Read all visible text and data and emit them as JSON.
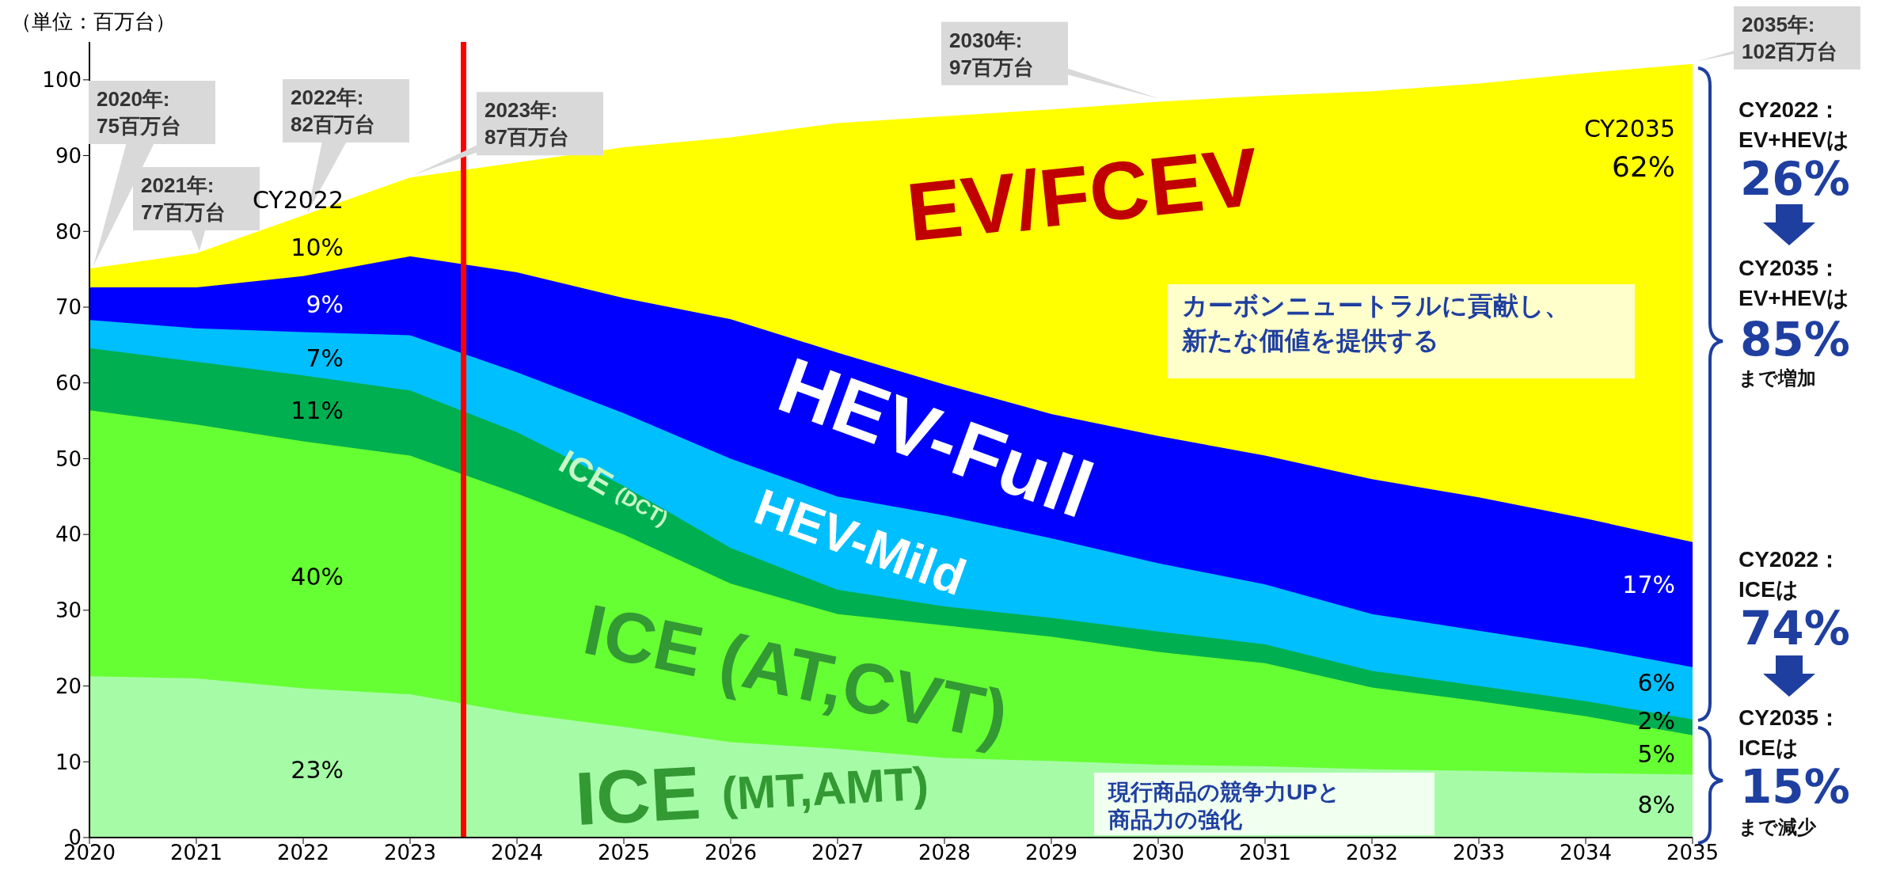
{
  "chart_data": {
    "type": "area",
    "stacked": true,
    "ylabel": "（単位：百万台）",
    "x": [
      2020,
      2021,
      2022,
      2023,
      2024,
      2025,
      2026,
      2027,
      2028,
      2029,
      2030,
      2031,
      2032,
      2033,
      2034,
      2035
    ],
    "xlim": [
      2020,
      2035
    ],
    "xticks": [
      2020,
      2021,
      2022,
      2023,
      2024,
      2025,
      2026,
      2027,
      2028,
      2029,
      2030,
      2031,
      2032,
      2033,
      2034,
      2035
    ],
    "ylim": [
      0,
      105
    ],
    "yticks": [
      0,
      10,
      20,
      30,
      40,
      50,
      60,
      70,
      80,
      90,
      100
    ],
    "series": [
      {
        "name": "ICE (MT,AMT)",
        "color": "#a6fca6",
        "values": [
          21.3,
          21.0,
          19.7,
          18.9,
          16.4,
          14.6,
          12.6,
          11.7,
          10.5,
          10.1,
          9.6,
          9.4,
          9.0,
          8.8,
          8.5,
          8.3
        ]
      },
      {
        "name": "ICE (AT,CVT)",
        "color": "#66ff33",
        "values": [
          35.1,
          33.5,
          32.6,
          31.5,
          29.0,
          25.4,
          20.9,
          17.8,
          17.5,
          16.4,
          14.9,
          13.6,
          10.8,
          9.2,
          7.5,
          5.2
        ]
      },
      {
        "name": "ICE (DCT)",
        "color": "#00b050",
        "values": [
          8.2,
          8.3,
          8.7,
          8.6,
          8.1,
          6.4,
          4.7,
          3.2,
          2.5,
          2.5,
          2.7,
          2.5,
          2.2,
          2.0,
          2.0,
          2.1
        ]
      },
      {
        "name": "HEV-Mild",
        "color": "#00bfff",
        "values": [
          3.7,
          4.4,
          5.7,
          7.3,
          7.9,
          9.6,
          11.8,
          12.3,
          12.0,
          10.5,
          9.0,
          7.9,
          7.5,
          7.3,
          7.1,
          6.9
        ]
      },
      {
        "name": "HEV-Full",
        "color": "#0000ff",
        "values": [
          4.3,
          5.4,
          7.4,
          10.4,
          13.2,
          15.2,
          18.4,
          19.0,
          17.3,
          16.4,
          16.8,
          17.0,
          17.8,
          17.6,
          17.0,
          16.5
        ]
      },
      {
        "name": "EV/FCEV",
        "color": "#ffff00",
        "values": [
          2.4,
          4.4,
          7.9,
          10.3,
          14.4,
          19.8,
          23.9,
          30.2,
          35.3,
          40.1,
          44.0,
          47.4,
          51.1,
          54.5,
          58.7,
          63.0
        ]
      }
    ],
    "ref_lines": [
      {
        "axis": "x",
        "value": 2023.5,
        "color": "#ff0000"
      }
    ],
    "annotations": [
      {
        "text": "2021年:\n77百万台",
        "x": 2021,
        "y": 77
      },
      {
        "text": "2023年:\n87百万台",
        "x": 2023,
        "y": 87
      },
      {
        "text": "2030年:\n97百万台",
        "x": 2030,
        "y": 97
      },
      {
        "text": "2035年:\n102百万台",
        "x": 2035,
        "y": 102
      },
      {
        "text": "CY2035",
        "x": 2035,
        "y": 93.4
      },
      {
        "text": "62%",
        "x": 2035,
        "y": 88.3
      },
      {
        "text": "17%",
        "x": 2035,
        "y": 33.2
      },
      {
        "text": "6%",
        "x": 2035,
        "y": 20.2
      },
      {
        "text": "2%",
        "x": 2035,
        "y": 15.2
      },
      {
        "text": "5%",
        "x": 2035,
        "y": 10.8
      },
      {
        "text": "8%",
        "x": 2035,
        "y": 4.1
      },
      "2020年:\n75百万台",
      "2022年:\n82百万台",
      "CY2022",
      "10%",
      "9%",
      "7%",
      "11%",
      "40%",
      "23%",
      "カーボンニュートラルに貢献し、新たな価値を提供する",
      "現行商品の競争力UPと商品力の強化",
      "CY2022：\nEV+HEVは",
      "26%",
      "CY2035：\nEV+HEVは",
      "85%",
      "まで増加",
      "CY2022：\nICEは",
      "74%",
      "CY2035：\nICEは",
      "15%",
      "まで減少"
    ]
  }
}
